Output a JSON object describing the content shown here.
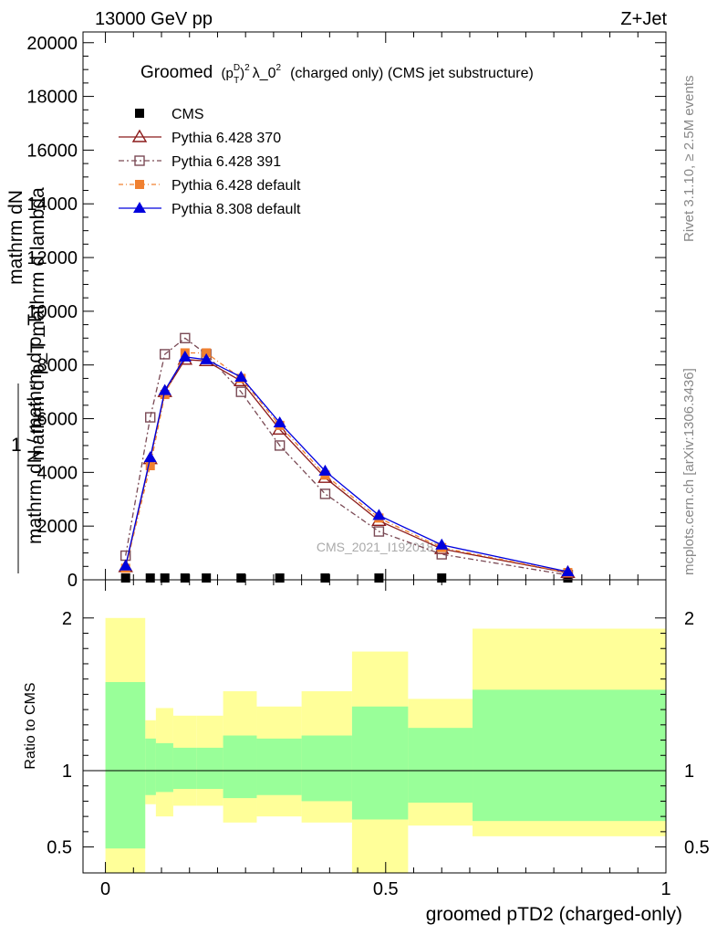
{
  "header": {
    "left": "13000 GeV pp",
    "right": "Z+Jet"
  },
  "side_labels": {
    "rivet": "Rivet 3.1.10, ≥ 2.5M events",
    "mcplots": "mcplots.cern.ch [arXiv:1306.3436]"
  },
  "chart_data": [
    {
      "type": "line",
      "title_main": "Groomed",
      "title_sub": "(charged only) (CMS jet substructure)",
      "ylabel_top": "mathrm dN",
      "ylabel_mid": "mathrm d p_T mathrm d lambda",
      "ylabel_one": "1",
      "ylabel_bottom": "mathrm dN / mathrm d p_T",
      "xlim": [
        -0.04,
        1.0
      ],
      "ylim": [
        0,
        20400
      ],
      "yticks": [
        0,
        2000,
        4000,
        6000,
        8000,
        10000,
        12000,
        14000,
        16000,
        18000,
        20000
      ],
      "ytick_labels": [
        "0",
        "2000",
        "4000",
        "6000",
        "8000",
        "10000",
        "12000",
        "14000",
        "16000",
        "18000",
        "20000"
      ],
      "watermark": "CMS_2021_I1920187",
      "x": [
        0.036,
        0.08,
        0.106,
        0.142,
        0.18,
        0.242,
        0.311,
        0.392,
        0.488,
        0.6,
        0.825
      ],
      "series": [
        {
          "name": "CMS",
          "marker": "square-filled",
          "color": "#000000",
          "values": [
            0,
            0,
            0,
            0,
            0,
            0,
            0,
            0,
            0,
            0,
            0
          ]
        },
        {
          "name": "Pythia 6.428 370",
          "marker": "triangle-open",
          "color": "#8b1a1a",
          "values": [
            480,
            4500,
            7000,
            8200,
            8150,
            7400,
            5600,
            3800,
            2200,
            1150,
            260
          ]
        },
        {
          "name": "Pythia 6.428 391",
          "marker": "square-open",
          "color": "#7a4a55",
          "values": [
            900,
            6050,
            8400,
            9000,
            8400,
            7000,
            5000,
            3200,
            1800,
            950,
            180
          ]
        },
        {
          "name": "Pythia 6.428 default",
          "marker": "square-filled",
          "color": "#f08030",
          "values": [
            430,
            4250,
            6900,
            8450,
            8450,
            7500,
            5750,
            3900,
            2300,
            1200,
            270
          ]
        },
        {
          "name": "Pythia 8.308 default",
          "marker": "triangle-filled",
          "color": "#0000dd",
          "values": [
            520,
            4550,
            7050,
            8300,
            8200,
            7550,
            5850,
            4050,
            2400,
            1300,
            300
          ]
        }
      ]
    },
    {
      "type": "area",
      "ylabel": "Ratio to CMS",
      "xlabel": "groomed pTD2 (charged-only)",
      "xlim": [
        -0.04,
        1.0
      ],
      "ylim": [
        0.33,
        2.25
      ],
      "yticks": [
        0.5,
        1,
        2
      ],
      "ytick_labels": [
        "0.5",
        "1",
        "2"
      ],
      "xticks": [
        0,
        0.5,
        1
      ],
      "xtick_labels": [
        "0",
        "0.5",
        "1"
      ],
      "bins": [
        0.0,
        0.071,
        0.09,
        0.121,
        0.163,
        0.21,
        0.27,
        0.35,
        0.44,
        0.54,
        0.655,
        1.0
      ],
      "band_outer": {
        "color": "#ffff99",
        "low": [
          0.33,
          0.78,
          0.7,
          0.77,
          0.77,
          0.66,
          0.7,
          0.66,
          0.33,
          0.64,
          0.57
        ],
        "high": [
          2.0,
          1.33,
          1.41,
          1.36,
          1.36,
          1.52,
          1.42,
          1.52,
          1.78,
          1.47,
          1.93
        ]
      },
      "band_inner": {
        "color": "#99ff99",
        "low": [
          0.49,
          0.84,
          0.86,
          0.88,
          0.88,
          0.82,
          0.84,
          0.8,
          0.68,
          0.79,
          0.67
        ],
        "high": [
          1.58,
          1.21,
          1.18,
          1.15,
          1.15,
          1.23,
          1.21,
          1.23,
          1.42,
          1.28,
          1.53
        ]
      },
      "reference": 1
    }
  ]
}
